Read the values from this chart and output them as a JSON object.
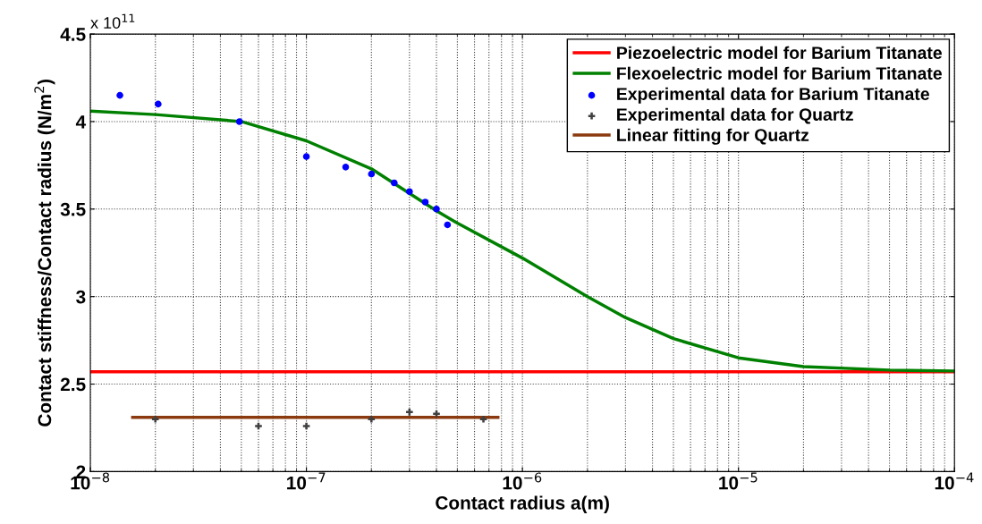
{
  "chart_data": {
    "type": "line",
    "xlabel": "Contact radius a(m)",
    "ylabel": "Contact stiffness/Contact radius (N/m$^{2}$)",
    "log": "x",
    "xlim": [
      1e-08,
      0.0001
    ],
    "ylim": [
      2,
      4.5
    ],
    "xticks": [
      {
        "value": 1e-08,
        "label": "10$^{−8}$"
      },
      {
        "value": 1e-07,
        "label": "10$^{−7}$"
      },
      {
        "value": 1e-06,
        "label": "10$^{−6}$"
      },
      {
        "value": 1e-05,
        "label": "10$^{−5}$"
      },
      {
        "value": 0.0001,
        "label": "10$^{−4}$"
      }
    ],
    "yticks": [
      2,
      2.5,
      3,
      3.5,
      4,
      4.5
    ],
    "annotations": [
      "x 10$^{11}$"
    ],
    "grid": true,
    "legend": "top right",
    "series": [
      {
        "name": "Piezoelectric model for Barium Titanate",
        "color": "#ff0000",
        "marker": "none",
        "x": [
          1e-08,
          0.0001
        ],
        "values": [
          2.57,
          2.57
        ]
      },
      {
        "name": "Flexoelectric model for Barium Titanate",
        "color": "#008000",
        "marker": "none",
        "x": [
          1e-08,
          2e-08,
          5e-08,
          1e-07,
          2e-07,
          3e-07,
          4e-07,
          5e-07,
          1e-06,
          2e-06,
          3e-06,
          5e-06,
          1e-05,
          2e-05,
          5e-05,
          0.0001
        ],
        "values": [
          4.06,
          4.04,
          4.0,
          3.89,
          3.73,
          3.59,
          3.49,
          3.42,
          3.22,
          3.0,
          2.88,
          2.76,
          2.65,
          2.6,
          2.58,
          2.575
        ]
      },
      {
        "name": "Experimental data for Barium Titanate",
        "type": "scatter",
        "color": "#0000ff",
        "marker": "circle",
        "x": [
          1.37e-08,
          2.06e-08,
          4.9e-08,
          1e-07,
          1.52e-07,
          2e-07,
          2.55e-07,
          3e-07,
          3.55e-07,
          4e-07,
          4.5e-07
        ],
        "values": [
          4.15,
          4.1,
          4.0,
          3.8,
          3.74,
          3.7,
          3.65,
          3.6,
          3.54,
          3.5,
          3.41
        ]
      },
      {
        "name": "Experimental data for Quartz",
        "type": "scatter",
        "color": "#404040",
        "marker": "cross",
        "x": [
          2e-08,
          6e-08,
          1e-07,
          2e-07,
          3e-07,
          4e-07,
          6.6e-07
        ],
        "values": [
          2.3,
          2.26,
          2.26,
          2.3,
          2.34,
          2.33,
          2.3
        ]
      },
      {
        "name": "Linear fitting for Quartz",
        "color": "#8b3a0f",
        "marker": "none",
        "x": [
          1.57e-08,
          7.7e-07
        ],
        "values": [
          2.31,
          2.31
        ]
      }
    ]
  }
}
